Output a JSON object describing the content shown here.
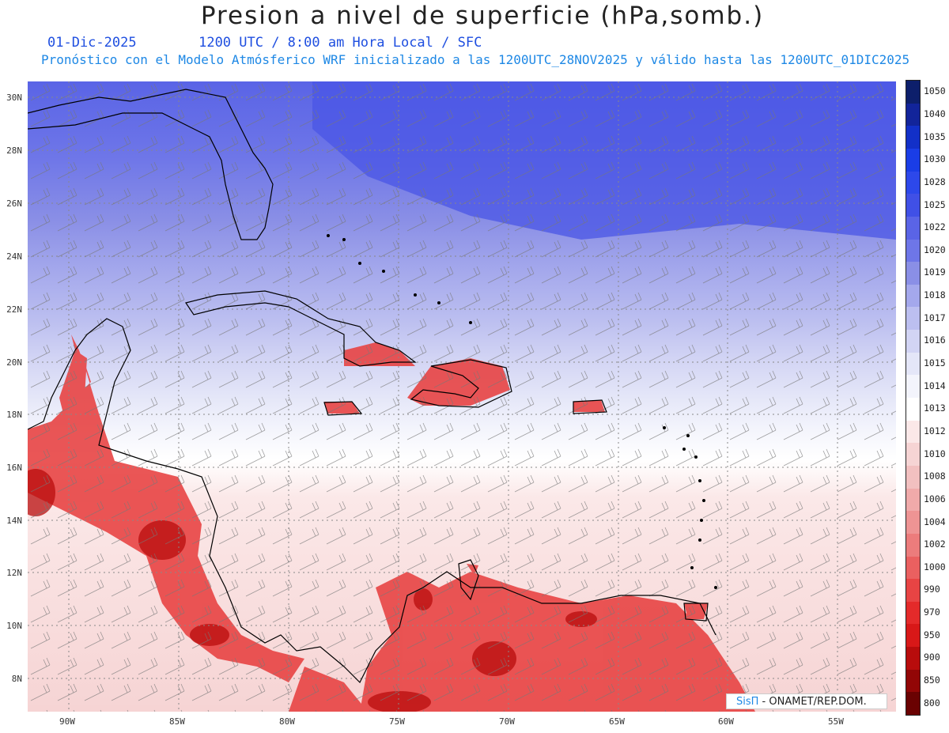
{
  "title": "Presion a nivel de superficie (hPa,somb.)",
  "date": "01-Dic-2025",
  "time_info": "1200 UTC / 8:00 am Hora Local / SFC",
  "forecast_info": "Pronóstico con el Modelo Atmósferico WRF inicializado a las 1200UTC_28NOV2025 y válido hasta las  1200UTC_01DIC2025",
  "latitude_labels": [
    "30N",
    "28N",
    "26N",
    "24N",
    "22N",
    "20N",
    "18N",
    "16N",
    "14N",
    "12N",
    "10N",
    "8N"
  ],
  "longitude_labels": [
    "90W",
    "85W",
    "80W",
    "75W",
    "70W",
    "65W",
    "60W",
    "55W"
  ],
  "colorbar": {
    "levels": [
      "1050",
      "1040",
      "1035",
      "1030",
      "1028",
      "1025",
      "1022",
      "1020",
      "1019",
      "1018",
      "1017",
      "1016",
      "1015",
      "1014",
      "1013",
      "1012",
      "1010",
      "1008",
      "1006",
      "1004",
      "1002",
      "1000",
      "990",
      "970",
      "950",
      "900",
      "850",
      "800"
    ],
    "colors": [
      "#0d1f6b",
      "#12249a",
      "#1230c8",
      "#1a3de6",
      "#2d48ea",
      "#4050e6",
      "#5a64e6",
      "#6e76e8",
      "#8a8fe6",
      "#a4a8ec",
      "#bcbff0",
      "#d2d4f4",
      "#e4e6f8",
      "#f3f4fc",
      "#ffffff",
      "#fbe8e8",
      "#f6d4d4",
      "#f2c0c0",
      "#f0aaaa",
      "#ee9494",
      "#ec7c7c",
      "#ea6060",
      "#e84444",
      "#e42a2a",
      "#d81818",
      "#b80c0c",
      "#920606",
      "#6a0202"
    ]
  },
  "watermark": {
    "logo": "SisΠ",
    "text": " - ONAMET/REP.DOM."
  }
}
